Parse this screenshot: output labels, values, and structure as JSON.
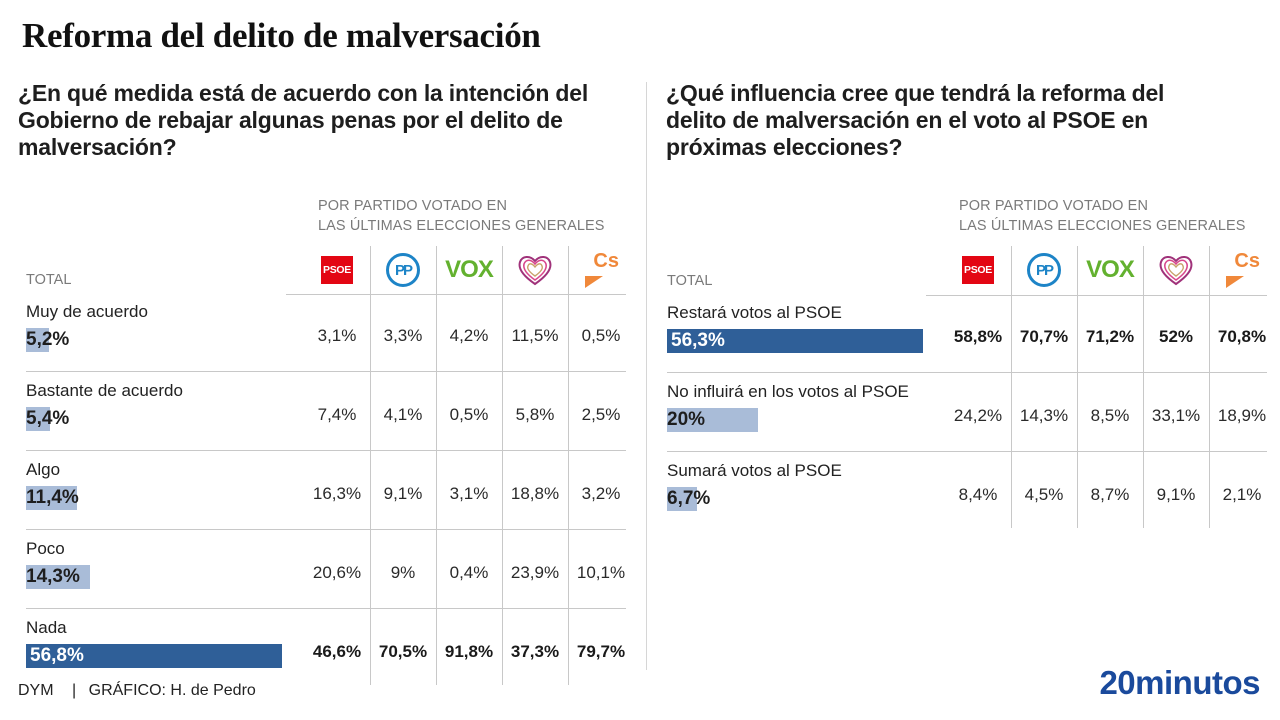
{
  "title": "Reforma del delito de malversación",
  "chart_data": [
    {
      "type": "table",
      "title": "¿En qué medida está de acuerdo con la intención del Gobierno de rebajar algunas penas por el delito de malversación?",
      "subheading": [
        "POR PARTIDO VOTADO EN",
        "LAS ÚLTIMAS ELECCIONES GENERALES"
      ],
      "total_label": "TOTAL",
      "columns": [
        "PSOE",
        "PP",
        "VOX",
        "Podemos",
        "Cs"
      ],
      "rows": [
        {
          "label": "Muy de acuerdo",
          "total": 5.2,
          "total_text": "5,2%",
          "values": [
            3.1,
            3.3,
            4.2,
            11.5,
            0.5
          ],
          "values_text": [
            "3,1%",
            "3,3%",
            "4,2%",
            "11,5%",
            "0,5%"
          ],
          "highlight": false
        },
        {
          "label": "Bastante de acuerdo",
          "total": 5.4,
          "total_text": "5,4%",
          "values": [
            7.4,
            4.1,
            0.5,
            5.8,
            2.5
          ],
          "values_text": [
            "7,4%",
            "4,1%",
            "0,5%",
            "5,8%",
            "2,5%"
          ],
          "highlight": false
        },
        {
          "label": "Algo",
          "total": 11.4,
          "total_text": "11,4%",
          "values": [
            16.3,
            9.1,
            3.1,
            18.8,
            3.2
          ],
          "values_text": [
            "16,3%",
            "9,1%",
            "3,1%",
            "18,8%",
            "3,2%"
          ],
          "highlight": false
        },
        {
          "label": "Poco",
          "total": 14.3,
          "total_text": "14,3%",
          "values": [
            20.6,
            9,
            0.4,
            23.9,
            10.1
          ],
          "values_text": [
            "20,6%",
            "9%",
            "0,4%",
            "23,9%",
            "10,1%"
          ],
          "highlight": false
        },
        {
          "label": "Nada",
          "total": 56.8,
          "total_text": "56,8%",
          "values": [
            46.6,
            70.5,
            91.8,
            37.3,
            79.7
          ],
          "values_text": [
            "46,6%",
            "70,5%",
            "91,8%",
            "37,3%",
            "79,7%"
          ],
          "highlight": true
        }
      ]
    },
    {
      "type": "table",
      "title": "¿Qué influencia cree que tendrá la reforma del delito de malversación en el voto al PSOE en próximas elecciones?",
      "subheading": [
        "POR PARTIDO VOTADO EN",
        "LAS ÚLTIMAS ELECCIONES GENERALES"
      ],
      "total_label": "TOTAL",
      "columns": [
        "PSOE",
        "PP",
        "VOX",
        "Podemos",
        "Cs"
      ],
      "rows": [
        {
          "label": "Restará votos al PSOE",
          "total": 56.3,
          "total_text": "56,3%",
          "values": [
            58.8,
            70.7,
            71.2,
            52,
            70.8
          ],
          "values_text": [
            "58,8%",
            "70,7%",
            "71,2%",
            "52%",
            "70,8%"
          ],
          "highlight": true
        },
        {
          "label": "No influirá en los votos al PSOE",
          "total": 20,
          "total_text": "20%",
          "values": [
            24.2,
            14.3,
            8.5,
            33.1,
            18.9
          ],
          "values_text": [
            "24,2%",
            "14,3%",
            "8,5%",
            "33,1%",
            "18,9%"
          ],
          "highlight": false
        },
        {
          "label": "Sumará votos al PSOE",
          "total": 6.7,
          "total_text": "6,7%",
          "values": [
            8.4,
            4.5,
            8.7,
            9.1,
            2.1
          ],
          "values_text": [
            "8,4%",
            "4,5%",
            "8,7%",
            "9,1%",
            "2,1%"
          ],
          "highlight": false
        }
      ]
    }
  ],
  "logos": {
    "psoe": "PSOE",
    "pp": "PP",
    "vox": "VOX",
    "cs": "Cs"
  },
  "colors": {
    "bar_light": "#a9bcd8",
    "bar_dark": "#2f5f98",
    "psoe": "#e30613",
    "pp": "#1d84c7",
    "vox": "#63b12f",
    "cs": "#f0883a",
    "brand": "#1a4a9c"
  },
  "footer": {
    "source": "DYM",
    "separator": "|",
    "credit": "GRÁFICO: H. de Pedro"
  },
  "brand": "20minutos"
}
